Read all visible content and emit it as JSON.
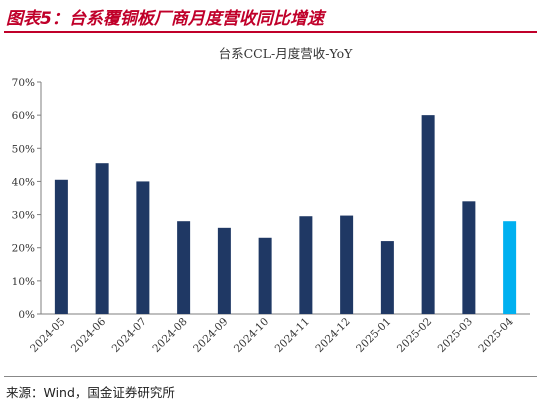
{
  "header": {
    "title": "图表5：台系覆铜板厂商月度营收同比增速"
  },
  "footer": {
    "source": "来源：Wind，国金证券研究所"
  },
  "colors": {
    "primary_bar": "#1f3864",
    "highlight_bar": "#00b0f0",
    "title_red": "#c0002a"
  },
  "chart_data": {
    "type": "bar",
    "title": "台系CCL-月度营收-YoY",
    "categories": [
      "2024-05",
      "2024-06",
      "2024-07",
      "2024-08",
      "2024-09",
      "2024-10",
      "2024-11",
      "2024-12",
      "2025-01",
      "2025-02",
      "2025-03",
      "2025-04"
    ],
    "values": [
      40.5,
      45.5,
      40,
      28,
      26,
      23,
      29.5,
      29.7,
      22,
      60,
      34,
      28
    ],
    "highlight_index": 11,
    "ylim": [
      0,
      70
    ],
    "yticks": [
      "0%",
      "10%",
      "20%",
      "30%",
      "40%",
      "50%",
      "60%",
      "70%"
    ],
    "grid": false,
    "legend": "none"
  }
}
